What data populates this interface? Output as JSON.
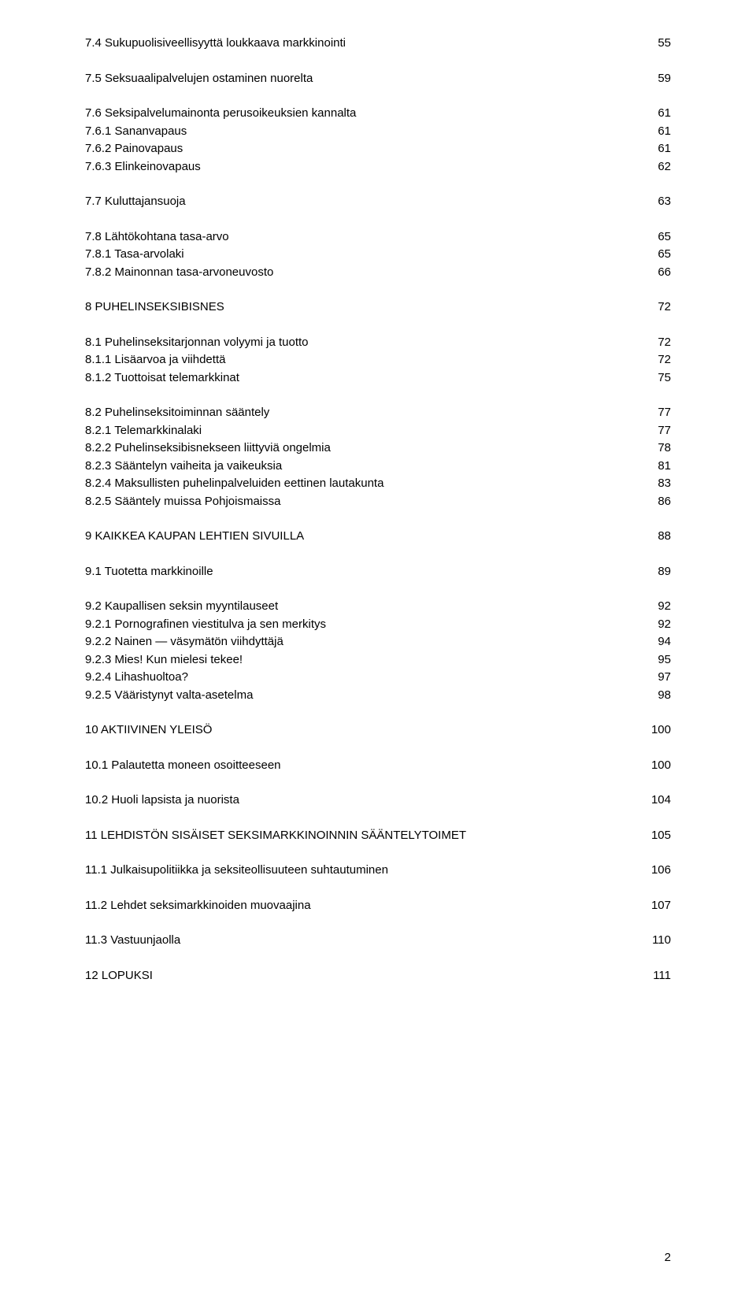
{
  "font_family": "Verdana, Geneva, sans-serif",
  "font_size_pt": 11,
  "text_color": "#000000",
  "background_color": "#ffffff",
  "page_number": "2",
  "entries": [
    {
      "label": "7.4 Sukupuolisiveellisyyttä loukkaava markkinointi",
      "page": "55",
      "gap_after": true
    },
    {
      "label": "7.5 Seksuaalipalvelujen ostaminen nuorelta",
      "page": "59",
      "gap_after": true
    },
    {
      "label": "7.6 Seksipalvelumainonta perusoikeuksien kannalta",
      "page": "61"
    },
    {
      "label": "7.6.1 Sananvapaus",
      "page": "61"
    },
    {
      "label": "7.6.2 Painovapaus",
      "page": "61"
    },
    {
      "label": "7.6.3 Elinkeinovapaus",
      "page": "62",
      "gap_after": true
    },
    {
      "label": "7.7 Kuluttajansuoja",
      "page": "63",
      "gap_after": true
    },
    {
      "label": "7.8 Lähtökohtana tasa-arvo",
      "page": "65"
    },
    {
      "label": "7.8.1 Tasa-arvolaki",
      "page": "65"
    },
    {
      "label": "7.8.2 Mainonnan tasa-arvoneuvosto",
      "page": "66",
      "gap_after": true
    },
    {
      "label": "8 PUHELINSEKSIBISNES",
      "page": "72",
      "gap_after": true
    },
    {
      "label": "8.1 Puhelinseksitarjonnan volyymi ja tuotto",
      "page": "72"
    },
    {
      "label": "8.1.1 Lisäarvoa ja viihdettä",
      "page": "72"
    },
    {
      "label": "8.1.2 Tuottoisat telemarkkinat",
      "page": "75",
      "gap_after": true
    },
    {
      "label": "8.2 Puhelinseksitoiminnan sääntely",
      "page": "77"
    },
    {
      "label": "8.2.1 Telemarkkinalaki",
      "page": "77"
    },
    {
      "label": "8.2.2  Puhelinseksibisnekseen liittyviä ongelmia",
      "page": "78"
    },
    {
      "label": "8.2.3 Sääntelyn vaiheita ja vaikeuksia",
      "page": "81"
    },
    {
      "label": "8.2.4 Maksullisten puhelinpalveluiden eettinen lautakunta",
      "page": "83"
    },
    {
      "label": "8.2.5 Sääntely muissa Pohjoismaissa",
      "page": "86",
      "gap_after": true
    },
    {
      "label": "9 KAIKKEA KAUPAN LEHTIEN SIVUILLA",
      "page": "88",
      "gap_after": true
    },
    {
      "label": "9.1 Tuotetta markkinoille",
      "page": "89",
      "gap_after": true
    },
    {
      "label": "9.2 Kaupallisen seksin myyntilauseet",
      "page": "92"
    },
    {
      "label": "9.2.1 Pornografinen viestitulva ja sen merkitys",
      "page": "92"
    },
    {
      "label": "9.2.2 Nainen — väsymätön viihdyttäjä",
      "page": "94"
    },
    {
      "label": "9.2.3 Mies! Kun mielesi tekee!",
      "page": "95"
    },
    {
      "label": "9.2.4 Lihashuoltoa?",
      "page": "97"
    },
    {
      "label": "9.2.5 Vääristynyt valta-asetelma",
      "page": "98",
      "gap_after": true
    },
    {
      "label": "10 AKTIIVINEN YLEISÖ",
      "page": "100",
      "gap_after": true
    },
    {
      "label": "10.1 Palautetta moneen osoitteeseen",
      "page": "100",
      "gap_after": true
    },
    {
      "label": "10.2 Huoli lapsista ja nuorista",
      "page": "104",
      "gap_after": true
    },
    {
      "label": "11 LEHDISTÖN SISÄISET SEKSIMARKKINOINNIN SÄÄNTELYTOIMET",
      "page": "105",
      "gap_after": true
    },
    {
      "label": "11.1 Julkaisupolitiikka ja seksiteollisuuteen suhtautuminen",
      "page": "106",
      "gap_after": true
    },
    {
      "label": "11.2 Lehdet seksimarkkinoiden muovaajina",
      "page": "107",
      "gap_after": true
    },
    {
      "label": "11.3 Vastuunjaolla",
      "page": "110",
      "gap_after": true
    },
    {
      "label": "12 LOPUKSI",
      "page": "111"
    }
  ]
}
